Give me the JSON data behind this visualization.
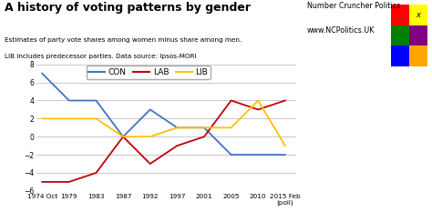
{
  "title": "A history of voting patterns by gender",
  "subtitle1": "Estimates of party vote shares among women minus share among men.",
  "subtitle2": "LIB includes predecessor parties. Data source: Ipsos-MORI",
  "branding_line1": "Number Cruncher Politics",
  "branding_line2": "www.NCPolitics.UK",
  "x_labels": [
    "1974 Oct",
    "1979",
    "1983",
    "1987",
    "1992",
    "1997",
    "2001",
    "2005",
    "2010",
    "2015 Feb\n(poll)"
  ],
  "x_positions": [
    0,
    1,
    2,
    3,
    4,
    5,
    6,
    7,
    8,
    9
  ],
  "CON": [
    7,
    4,
    4,
    0,
    3,
    1,
    1,
    -2,
    -2,
    -2
  ],
  "LAB": [
    -5,
    -5,
    -4,
    0,
    -3,
    -1,
    0,
    4,
    3,
    4
  ],
  "LIB": [
    2,
    2,
    2,
    0,
    0,
    1,
    1,
    1,
    4,
    -1
  ],
  "CON_color": "#4472C4",
  "LAB_color": "#C0000C",
  "LIB_color": "#FFC000",
  "ylim": [
    -6,
    8
  ],
  "yticks": [
    -6,
    -4,
    -2,
    0,
    2,
    4,
    6,
    8
  ],
  "bg_color": "#FFFFFF",
  "grid_color": "#C0C0C0",
  "logo_colors_grid": [
    [
      "#FF0000",
      "#FFFFFF"
    ],
    [
      "#008000",
      "#800080"
    ],
    [
      "#0000FF",
      "#FFA500"
    ]
  ],
  "logo_top_right_yellow": "#FFFF00"
}
